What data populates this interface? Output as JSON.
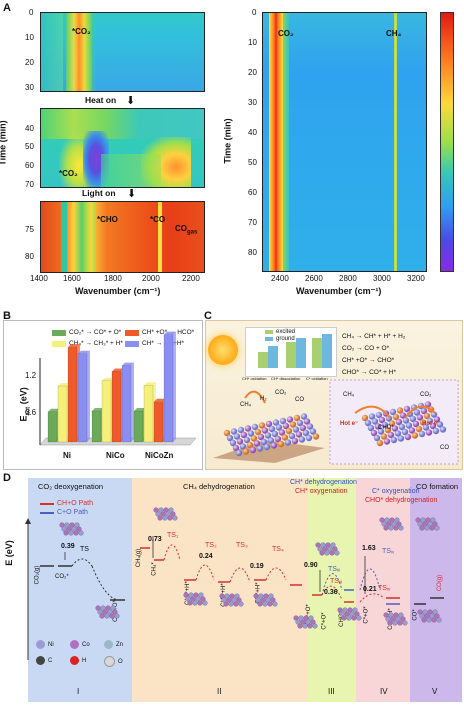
{
  "panel_a": {
    "letter": "A",
    "left_labels": {
      "co2_top": "*CO₂",
      "co2_mid": "*CO₂",
      "cho": "*CHO",
      "co": "*CO",
      "co_gas": "CO",
      "co_gas_sub": "gas"
    },
    "heat_on": "Heat on",
    "light_on": "Light on",
    "y_title": "Time (min)",
    "x_title": "Wavenumber (cm⁻¹)",
    "x_ticks": [
      "1400",
      "1600",
      "1800",
      "2000",
      "2200"
    ],
    "y_ticks_top": [
      "0",
      "10",
      "20",
      "30"
    ],
    "y_ticks_mid": [
      "40",
      "50",
      "60",
      "70"
    ],
    "y_ticks_bot": [
      "75",
      "80"
    ],
    "right_labels": {
      "co2": "CO₂",
      "ch4": "CH₄"
    },
    "right_y_ticks": [
      "0",
      "10",
      "20",
      "30",
      "40",
      "50",
      "60",
      "70",
      "80"
    ],
    "right_x_ticks": [
      "2400",
      "2600",
      "2800",
      "3000",
      "3200"
    ]
  },
  "panel_b": {
    "letter": "B",
    "y_title": "E",
    "y_title_sub": "act",
    "y_title_unit": "(eV)",
    "y_ticks": [
      "0.6",
      "1.2"
    ],
    "legend": [
      {
        "label": "CO₂* → CO* + O*",
        "color": "#6aaa5a"
      },
      {
        "label": "CH* +O* → HCO*",
        "color": "#ef5a2a"
      },
      {
        "label": "CH₄* → CH₃* + H*",
        "color": "#f5f07a"
      },
      {
        "label": "CH* → C* +H*",
        "color": "#8a8ef0"
      }
    ],
    "chart_data": {
      "type": "bar",
      "categories": [
        "Ni",
        "NiCo",
        "NiCoZn"
      ],
      "series": [
        {
          "name": "CO₂* → CO* + O*",
          "values": [
            0.46,
            0.47,
            0.47
          ]
        },
        {
          "name": "CH₄* → CH₃* + H*",
          "values": [
            0.85,
            0.93,
            0.86
          ]
        },
        {
          "name": "CH* +O* → HCO*",
          "values": [
            1.44,
            1.07,
            0.61
          ]
        },
        {
          "name": "CH* → C* +H*",
          "values": [
            1.34,
            1.16,
            1.63
          ]
        }
      ],
      "ylim": [
        0,
        1.7
      ]
    }
  },
  "panel_c": {
    "letter": "C",
    "legend_excited": "excited",
    "legend_ground": "ground",
    "bar_labels": [
      "CH* oxidation",
      "CH* dissociation",
      "C* oxidation"
    ],
    "reactions": [
      "CH₄ → CH* + H* + H₂",
      "CO₂ → CO + O*",
      "CH* +O* → CHO*",
      "CHO* → CO* + H*"
    ],
    "hot_e": "Hot e⁻",
    "species": {
      "ch4": "CH₄",
      "co2": "CO₂",
      "h2": "H₂",
      "co": "CO",
      "cho": "CHO*"
    }
  },
  "panel_d": {
    "letter": "D",
    "y_title": "E (eV)",
    "sections": [
      {
        "title": "CO₂ deoxygenation",
        "roman": "I"
      },
      {
        "title": "CH₄ dehydrogenation",
        "roman": "II"
      },
      {
        "title": "",
        "roman": "III"
      },
      {
        "title": "",
        "roman": "IV"
      },
      {
        "title": "CO fomation",
        "roman": "V"
      }
    ],
    "sec3_title1": "CH* dehydrogenation",
    "sec3_title2": "CH* oxygenation",
    "sec4_title1": "C* oxygenation",
    "sec4_title2": "CHO* dehydrogenation",
    "paths": [
      {
        "label": "CH+O Path",
        "color": "#d63030"
      },
      {
        "label": "C+O Path",
        "color": "#4a5fbf"
      }
    ],
    "values": [
      "0.39",
      "0.73",
      "0.24",
      "0.19",
      "0.90",
      "0.36",
      "1.63",
      "0.21"
    ],
    "ts_labels": [
      "TS",
      "TS₁",
      "TS₂",
      "TS₃",
      "TS₄",
      "TSᵢᵢᵢ",
      "TSᵢᵢᵢ",
      "TSᵢᵥ",
      "TSᵢᵥ"
    ],
    "state_labels": [
      "CO₂(g)",
      "CO₂*",
      "CO*+O*",
      "CH₄(g)",
      "CH₄*",
      "CH₃*+H*",
      "CH₂*+H*",
      "CH*+H*",
      "CH*+O*",
      "C*+O*",
      "CHO*",
      "C*+O*",
      "CO*+H*",
      "CO*",
      "CO(g)"
    ],
    "legend_atoms": [
      {
        "sym": "Ni",
        "color": "#9a9ad6"
      },
      {
        "sym": "Co",
        "color": "#b070c0"
      },
      {
        "sym": "Zn",
        "color": "#9ab8c8"
      },
      {
        "sym": "C",
        "color": "#444444"
      },
      {
        "sym": "H",
        "color": "#dd2222"
      },
      {
        "sym": "O",
        "color": "#d8d8d8"
      }
    ]
  }
}
